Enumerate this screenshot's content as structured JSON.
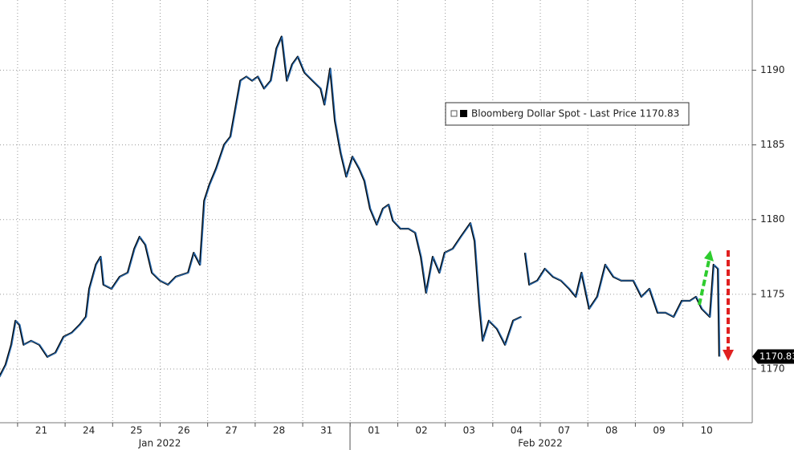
{
  "chart_data": {
    "type": "line",
    "legend": "Bloomberg Dollar Spot - Last Price 1170.83",
    "last_price_label": "1170.83",
    "months": [
      "Jan 2022",
      "Feb 2022"
    ],
    "xlim": [
      -0.37,
      15.46
    ],
    "xticks": [
      {
        "value": 0.5,
        "label": "21"
      },
      {
        "value": 1.5,
        "label": "24"
      },
      {
        "value": 2.5,
        "label": "25"
      },
      {
        "value": 3.5,
        "label": "26"
      },
      {
        "value": 4.5,
        "label": "27"
      },
      {
        "value": 5.5,
        "label": "28"
      },
      {
        "value": 6.5,
        "label": "31"
      },
      {
        "value": 7.5,
        "label": "01"
      },
      {
        "value": 8.5,
        "label": "02"
      },
      {
        "value": 9.5,
        "label": "03"
      },
      {
        "value": 10.5,
        "label": "04"
      },
      {
        "value": 11.5,
        "label": "07"
      },
      {
        "value": 12.5,
        "label": "08"
      },
      {
        "value": 13.5,
        "label": "09"
      },
      {
        "value": 14.5,
        "label": "10"
      }
    ],
    "ylim": [
      1166.4,
      1194.7
    ],
    "yticks": [
      1170,
      1175,
      1180,
      1185,
      1190
    ],
    "grid": true,
    "series": [
      {
        "name": "Bloomberg Dollar Spot",
        "color": "#2b6cb0",
        "x": [
          -0.37,
          -0.24,
          -0.12,
          -0.03,
          0.05,
          0.14,
          0.3,
          0.47,
          0.64,
          0.81,
          0.98,
          1.15,
          1.32,
          1.45,
          1.52,
          1.66,
          1.76,
          1.82,
          1.99,
          2.16,
          2.33,
          2.47,
          2.58,
          2.7,
          2.84,
          3.01,
          3.18,
          3.34,
          3.6,
          3.72,
          3.85,
          3.94,
          4.05,
          4.19,
          4.36,
          4.49,
          4.61,
          4.7,
          4.83,
          4.95,
          5.07,
          5.2,
          5.34,
          5.46,
          5.57,
          5.68,
          5.79,
          5.91,
          6.05,
          6.22,
          6.39,
          6.47,
          6.59,
          6.69,
          6.81,
          6.93,
          7.06,
          7.2,
          7.31,
          7.43,
          7.57,
          7.7,
          7.82,
          7.91,
          8.07,
          8.24,
          8.38,
          8.5,
          8.61,
          8.75,
          8.89,
          9.0,
          9.17,
          9.34,
          9.54,
          9.63,
          9.73,
          9.8,
          9.93,
          10.1,
          10.27,
          10.44,
          10.61,
          10.65,
          10.69,
          10.78,
          10.95,
          11.11,
          11.28,
          11.45,
          11.62,
          11.76,
          11.88,
          12.04,
          12.21,
          12.38,
          12.55,
          12.72,
          12.97,
          13.14,
          13.31,
          13.48,
          13.65,
          13.82,
          13.99,
          14.16,
          14.29,
          14.41,
          14.58,
          14.66,
          14.75,
          14.78
        ],
        "values": [
          1169.47,
          1170.28,
          1171.62,
          1173.23,
          1172.96,
          1171.62,
          1171.89,
          1171.62,
          1170.81,
          1171.08,
          1172.15,
          1172.42,
          1172.96,
          1173.49,
          1175.37,
          1176.98,
          1177.51,
          1175.64,
          1175.37,
          1176.17,
          1176.44,
          1178.05,
          1178.85,
          1178.32,
          1176.44,
          1175.91,
          1175.64,
          1176.17,
          1176.44,
          1177.78,
          1176.98,
          1181.26,
          1182.34,
          1183.41,
          1185.02,
          1185.55,
          1187.7,
          1189.3,
          1189.57,
          1189.3,
          1189.57,
          1188.77,
          1189.3,
          1191.45,
          1192.25,
          1189.3,
          1190.38,
          1190.91,
          1189.84,
          1189.3,
          1188.77,
          1187.7,
          1190.11,
          1186.62,
          1184.48,
          1182.87,
          1184.21,
          1183.41,
          1182.6,
          1180.73,
          1179.66,
          1180.73,
          1181.0,
          1179.93,
          1179.39,
          1179.39,
          1179.12,
          1177.51,
          1175.1,
          1177.51,
          1176.44,
          1177.78,
          1178.05,
          1178.85,
          1179.76,
          1178.58,
          1174.3,
          1171.89,
          1173.23,
          1172.69,
          1171.62,
          1173.23,
          1173.49,
          null,
          1177.78,
          1175.64,
          1175.91,
          1176.71,
          1176.17,
          1175.91,
          1175.37,
          1174.83,
          1176.44,
          1174.03,
          1174.83,
          1176.98,
          1176.17,
          1175.91,
          1175.91,
          1174.83,
          1175.37,
          1173.76,
          1173.76,
          1173.49,
          1174.56,
          1174.56,
          1174.83,
          1174.03,
          1173.49,
          1176.98,
          1176.71,
          1170.83
        ]
      }
    ]
  }
}
